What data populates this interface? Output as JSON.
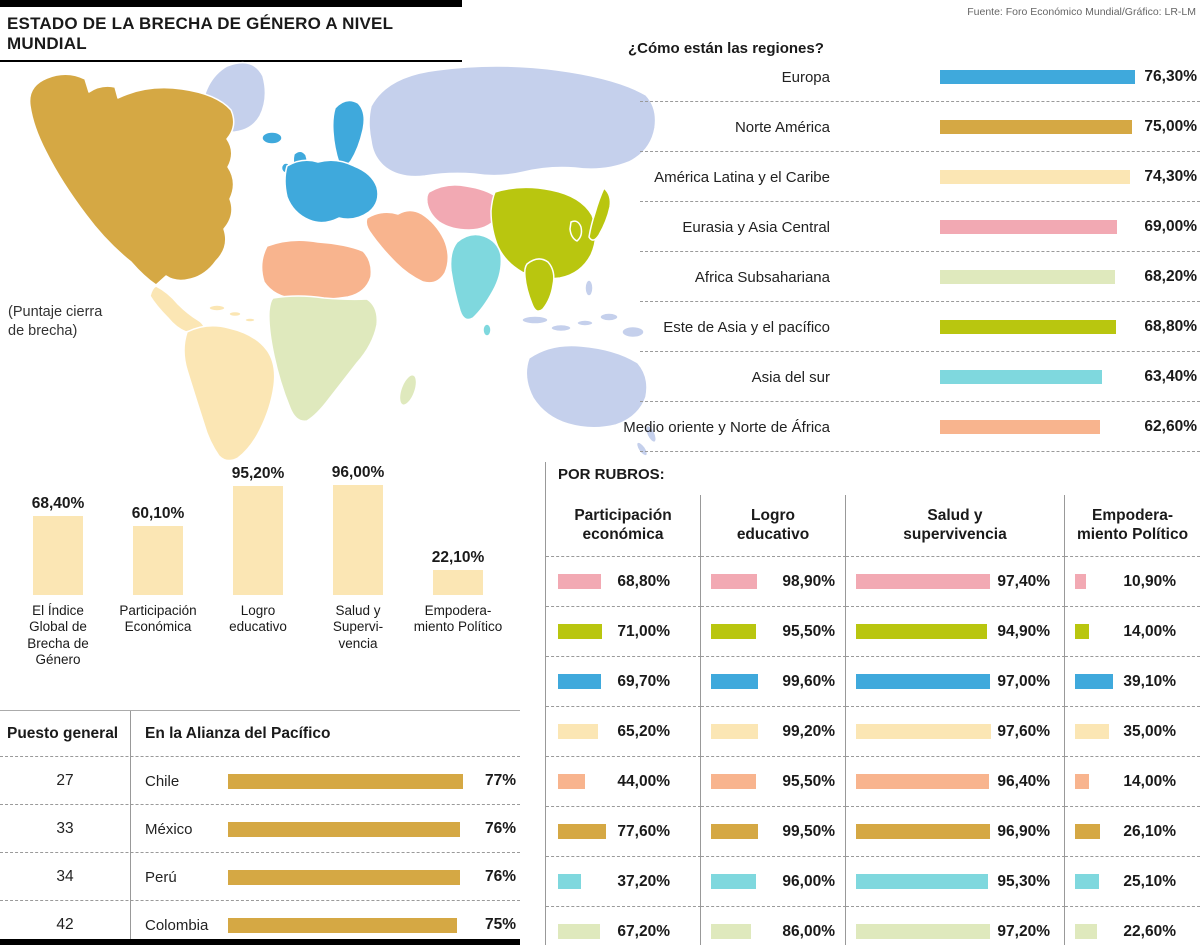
{
  "title": "ESTADO DE LA BRECHA DE GÉNERO A NIVEL MUNDIAL",
  "source": "Fuente: Foro Económico Mundial/Gráfico: LR-LM",
  "map_caption": "(Puntaje cierra\nde brecha)",
  "colors": {
    "europa": "#3FA9DC",
    "norte_america": "#D5A844",
    "latam": "#FBE6B4",
    "eurasia": "#F2A9B3",
    "africa_sub": "#DFE9BD",
    "este_asia": "#B9C60F",
    "asia_sur": "#7FD8DE",
    "mena": "#F8B48E",
    "resto": "#C5D0EC"
  },
  "regions": {
    "title": "¿Cómo están las regiones?",
    "items": [
      {
        "label": "Europa",
        "value": "76,30%",
        "pct": 76.3,
        "color": "#3FA9DC"
      },
      {
        "label": "Norte América",
        "value": "75,00%",
        "pct": 75.0,
        "color": "#D5A844"
      },
      {
        "label": "América Latina y el Caribe",
        "value": "74,30%",
        "pct": 74.3,
        "color": "#FBE6B4"
      },
      {
        "label": "Eurasia y Asia Central",
        "value": "69,00%",
        "pct": 69.0,
        "color": "#F2A9B3"
      },
      {
        "label": "Africa Subsahariana",
        "value": "68,20%",
        "pct": 68.2,
        "color": "#DFE9BD"
      },
      {
        "label": "Este de Asia y el pacífico",
        "value": "68,80%",
        "pct": 68.8,
        "color": "#B9C60F"
      },
      {
        "label": "Asia del sur",
        "value": "63,40%",
        "pct": 63.4,
        "color": "#7FD8DE"
      },
      {
        "label": "Medio oriente y Norte de África",
        "value": "62,60%",
        "pct": 62.6,
        "color": "#F8B48E"
      }
    ]
  },
  "index_chart": {
    "bar_color": "#FBE6B4",
    "bars": [
      {
        "label": "El Índice\nGlobal de\nBrecha de\nGénero",
        "value": "68,40%",
        "pct": 68.4
      },
      {
        "label": "Participación\nEconómica",
        "value": "60,10%",
        "pct": 60.1
      },
      {
        "label": "Logro\neducativo",
        "value": "95,20%",
        "pct": 95.2
      },
      {
        "label": "Salud y\nSupervi-\nvencia",
        "value": "96,00%",
        "pct": 96.0
      },
      {
        "label": "Empodera-\nmiento Político",
        "value": "22,10%",
        "pct": 22.1
      }
    ]
  },
  "pacifico": {
    "col1_header": "Puesto general",
    "col2_header": "En la Alianza del Pacífico",
    "bar_color": "#D5A844",
    "rows": [
      {
        "rank": "27",
        "country": "Chile",
        "value": "77%",
        "pct": 77
      },
      {
        "rank": "33",
        "country": "México",
        "value": "76%",
        "pct": 76
      },
      {
        "rank": "34",
        "country": "Perú",
        "value": "76%",
        "pct": 76
      },
      {
        "rank": "42",
        "country": "Colombia",
        "value": "75%",
        "pct": 75
      }
    ]
  },
  "rubros": {
    "title": "POR RUBROS:",
    "headers": [
      "Participación\neconómica",
      "Logro\neducativo",
      "Salud y\nsupervivencia",
      "Empodera-\nmiento Político"
    ],
    "rows": [
      {
        "color": "#F2A9B3",
        "participacion": {
          "value": "68,80%",
          "pct": 68.8
        },
        "logro": {
          "value": "98,90%",
          "pct": 98.9
        },
        "salud": {
          "value": "97,40%",
          "pct": 97.4
        },
        "empoderamiento": {
          "value": "10,90%",
          "pct": 10.9
        }
      },
      {
        "color": "#B9C60F",
        "participacion": {
          "value": "71,00%",
          "pct": 71.0
        },
        "logro": {
          "value": "95,50%",
          "pct": 95.5
        },
        "salud": {
          "value": "94,90%",
          "pct": 94.9
        },
        "empoderamiento": {
          "value": "14,00%",
          "pct": 14.0
        }
      },
      {
        "color": "#3FA9DC",
        "participacion": {
          "value": "69,70%",
          "pct": 69.7
        },
        "logro": {
          "value": "99,60%",
          "pct": 99.6
        },
        "salud": {
          "value": "97,00%",
          "pct": 97.0
        },
        "empoderamiento": {
          "value": "39,10%",
          "pct": 39.1
        }
      },
      {
        "color": "#FBE6B4",
        "participacion": {
          "value": "65,20%",
          "pct": 65.2
        },
        "logro": {
          "value": "99,20%",
          "pct": 99.2
        },
        "salud": {
          "value": "97,60%",
          "pct": 97.6
        },
        "empoderamiento": {
          "value": "35,00%",
          "pct": 35.0
        }
      },
      {
        "color": "#F8B48E",
        "participacion": {
          "value": "44,00%",
          "pct": 44.0
        },
        "logro": {
          "value": "95,50%",
          "pct": 95.5
        },
        "salud": {
          "value": "96,40%",
          "pct": 96.4
        },
        "empoderamiento": {
          "value": "14,00%",
          "pct": 14.0
        }
      },
      {
        "color": "#D5A844",
        "participacion": {
          "value": "77,60%",
          "pct": 77.6
        },
        "logro": {
          "value": "99,50%",
          "pct": 99.5
        },
        "salud": {
          "value": "96,90%",
          "pct": 96.9
        },
        "empoderamiento": {
          "value": "26,10%",
          "pct": 26.1
        }
      },
      {
        "color": "#7FD8DE",
        "participacion": {
          "value": "37,20%",
          "pct": 37.2
        },
        "logro": {
          "value": "96,00%",
          "pct": 96.0
        },
        "salud": {
          "value": "95,30%",
          "pct": 95.3
        },
        "empoderamiento": {
          "value": "25,10%",
          "pct": 25.1
        }
      },
      {
        "color": "#DFE9BD",
        "participacion": {
          "value": "67,20%",
          "pct": 67.2
        },
        "logro": {
          "value": "86,00%",
          "pct": 86.0
        },
        "salud": {
          "value": "97,20%",
          "pct": 97.2
        },
        "empoderamiento": {
          "value": "22,60%",
          "pct": 22.6
        }
      }
    ]
  },
  "chart_data": [
    {
      "type": "bar",
      "orientation": "horizontal",
      "title": "¿Cómo están las regiones?",
      "note": "(Puntaje cierra de brecha)",
      "categories": [
        "Europa",
        "Norte América",
        "América Latina y el Caribe",
        "Eurasia y Asia Central",
        "Africa Subsahariana",
        "Este de Asia y el pacífico",
        "Asia del sur",
        "Medio oriente y Norte de África"
      ],
      "values": [
        76.3,
        75.0,
        74.3,
        69.0,
        68.2,
        68.8,
        63.4,
        62.6
      ],
      "unit": "%",
      "xlim": [
        0,
        100
      ]
    },
    {
      "type": "bar",
      "orientation": "vertical",
      "title": "",
      "categories": [
        "El Índice Global de Brecha de Género",
        "Participación Económica",
        "Logro educativo",
        "Salud y Supervivencia",
        "Empoderamiento Político"
      ],
      "values": [
        68.4,
        60.1,
        95.2,
        96.0,
        22.1
      ],
      "unit": "%",
      "ylim": [
        0,
        100
      ]
    },
    {
      "type": "bar",
      "orientation": "horizontal",
      "title": "En la Alianza del Pacífico",
      "rank_label": "Puesto general",
      "ranks": [
        27,
        33,
        34,
        42
      ],
      "categories": [
        "Chile",
        "México",
        "Perú",
        "Colombia"
      ],
      "values": [
        77,
        76,
        76,
        75
      ],
      "unit": "%",
      "xlim": [
        0,
        100
      ]
    },
    {
      "type": "table",
      "title": "POR RUBROS:",
      "note": "rows identified by region color",
      "categories": [
        "Eurasia y Asia Central",
        "Este de Asia y el pacífico",
        "Europa",
        "América Latina y el Caribe",
        "Medio oriente y Norte de África",
        "Norte América",
        "Asia del sur",
        "Africa Subsahariana"
      ],
      "row_colors": [
        "#F2A9B3",
        "#B9C60F",
        "#3FA9DC",
        "#FBE6B4",
        "#F8B48E",
        "#D5A844",
        "#7FD8DE",
        "#DFE9BD"
      ],
      "series": [
        {
          "name": "Participación económica",
          "values": [
            68.8,
            71.0,
            69.7,
            65.2,
            44.0,
            77.6,
            37.2,
            67.2
          ]
        },
        {
          "name": "Logro educativo",
          "values": [
            98.9,
            95.5,
            99.6,
            99.2,
            95.5,
            99.5,
            96.0,
            86.0
          ]
        },
        {
          "name": "Salud y supervivencia",
          "values": [
            97.4,
            94.9,
            97.0,
            97.6,
            96.4,
            96.9,
            95.3,
            97.2
          ]
        },
        {
          "name": "Empoderamiento Político",
          "values": [
            10.9,
            14.0,
            39.1,
            35.0,
            14.0,
            26.1,
            25.1,
            22.6
          ]
        }
      ],
      "unit": "%"
    }
  ]
}
